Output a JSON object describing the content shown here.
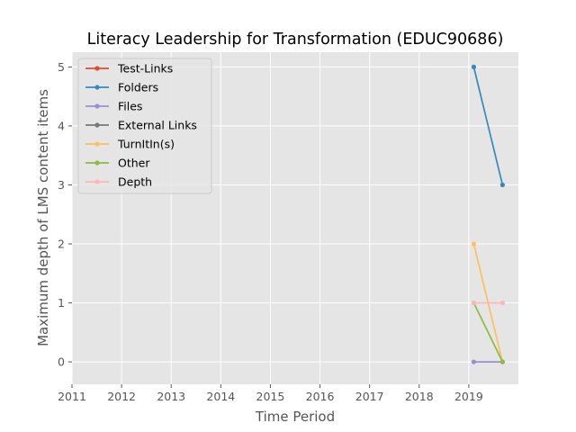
{
  "chart_data": {
    "type": "line",
    "title": "Literacy Leadership for Transformation (EDUC90686)",
    "xlabel": "Time Period",
    "ylabel": "Maximum depth of LMS content items",
    "xlim": [
      2011,
      2020.0
    ],
    "ylim": [
      -0.38,
      5.25
    ],
    "xticks": [
      "2011",
      "2012",
      "2013",
      "2014",
      "2015",
      "2016",
      "2017",
      "2018",
      "2019"
    ],
    "yticks": [
      "0",
      "1",
      "2",
      "3",
      "4",
      "5"
    ],
    "grid": true,
    "legend_position": "top-left",
    "x": [
      2019.1,
      2019.68
    ],
    "series": [
      {
        "name": "Test-Links",
        "color": "#E24A33",
        "values": [
          null,
          null
        ]
      },
      {
        "name": "Folders",
        "color": "#348ABD",
        "values": [
          5,
          3
        ]
      },
      {
        "name": "Files",
        "color": "#988ED5",
        "values": [
          0,
          0
        ]
      },
      {
        "name": "External Links",
        "color": "#777777",
        "values": [
          null,
          null
        ]
      },
      {
        "name": "TurnItIn(s)",
        "color": "#FBC15E",
        "values": [
          2,
          0
        ]
      },
      {
        "name": "Other",
        "color": "#8EBA42",
        "values": [
          1,
          0
        ]
      },
      {
        "name": "Depth",
        "color": "#FFB5B8",
        "values": [
          1,
          1
        ]
      }
    ]
  }
}
